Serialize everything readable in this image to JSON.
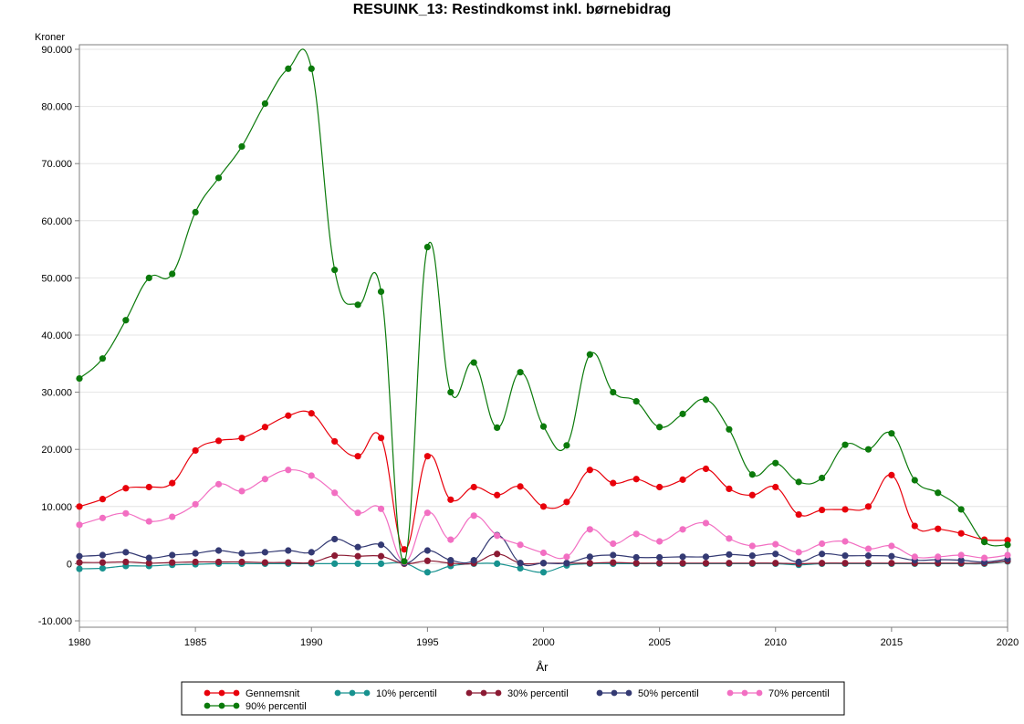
{
  "chart_data": {
    "type": "line",
    "title": "RESUINK_13: Restindkomst inkl. børnebidrag",
    "xlabel": "År",
    "ylabel": "Kroner",
    "xlim": [
      1980,
      2020
    ],
    "ylim": [
      -10000,
      90000
    ],
    "x_ticks": [
      1980,
      1985,
      1990,
      1995,
      2000,
      2005,
      2010,
      2015,
      2020
    ],
    "x_tick_labels": [
      "1980",
      "1985",
      "1990",
      "1995",
      "2000",
      "2005",
      "2010",
      "2015",
      "2020"
    ],
    "y_ticks": [
      -10000,
      0,
      10000,
      20000,
      30000,
      40000,
      50000,
      60000,
      70000,
      80000,
      90000
    ],
    "y_tick_labels": [
      "-10.000",
      "0",
      "10.000",
      "20.000",
      "30.000",
      "40.000",
      "50.000",
      "60.000",
      "70.000",
      "80.000",
      "90.000"
    ],
    "grid": "horizontal",
    "legend_position": "bottom",
    "x": [
      1980,
      1981,
      1982,
      1983,
      1984,
      1985,
      1986,
      1987,
      1988,
      1989,
      1990,
      1991,
      1992,
      1993,
      1994,
      1995,
      1996,
      1997,
      1998,
      1999,
      2000,
      2001,
      2002,
      2003,
      2004,
      2005,
      2006,
      2007,
      2008,
      2009,
      2010,
      2011,
      2012,
      2013,
      2014,
      2015,
      2016,
      2017,
      2018,
      2019,
      2020
    ],
    "series": [
      {
        "name": "Gennemsnit",
        "color": "#e8000b",
        "values": [
          10000,
          11300,
          13200,
          13400,
          14100,
          19800,
          21500,
          22000,
          23900,
          25900,
          26300,
          21400,
          18800,
          22000,
          2500,
          18800,
          11200,
          13400,
          12000,
          13500,
          10000,
          10800,
          16400,
          14100,
          14800,
          13400,
          14700,
          16600,
          13100,
          12000,
          13400,
          8600,
          9400,
          9500,
          10000,
          15500,
          6600,
          6100,
          5300,
          4200,
          4100
        ]
      },
      {
        "name": "10% percentil",
        "color": "#17928f",
        "values": [
          -900,
          -800,
          -400,
          -400,
          -200,
          -100,
          0,
          0,
          0,
          0,
          0,
          0,
          0,
          0,
          100,
          -1500,
          -400,
          0,
          0,
          -800,
          -1500,
          -300,
          0,
          0,
          0,
          0,
          0,
          0,
          0,
          0,
          0,
          -200,
          0,
          0,
          0,
          0,
          0,
          0,
          0,
          0,
          400
        ]
      },
      {
        "name": "30% percentil",
        "color": "#8b1a33",
        "values": [
          200,
          200,
          300,
          100,
          200,
          300,
          300,
          300,
          200,
          200,
          200,
          1400,
          1300,
          1300,
          0,
          500,
          100,
          100,
          1700,
          100,
          100,
          100,
          100,
          200,
          100,
          100,
          100,
          100,
          100,
          100,
          100,
          0,
          100,
          100,
          100,
          100,
          100,
          100,
          100,
          100,
          500
        ]
      },
      {
        "name": "50% percentil",
        "color": "#343a73",
        "values": [
          1300,
          1500,
          2000,
          1000,
          1500,
          1800,
          2300,
          1800,
          2000,
          2300,
          2000,
          4300,
          2900,
          3300,
          100,
          2300,
          600,
          600,
          5000,
          100,
          100,
          100,
          1200,
          1500,
          1100,
          1100,
          1200,
          1200,
          1600,
          1400,
          1700,
          300,
          1700,
          1400,
          1400,
          1300,
          600,
          700,
          600,
          300,
          800
        ]
      },
      {
        "name": "70% percentil",
        "color": "#f26fc2",
        "values": [
          6800,
          8000,
          8800,
          7400,
          8200,
          10400,
          13900,
          12700,
          14800,
          16400,
          15400,
          12400,
          8900,
          9600,
          300,
          8900,
          4200,
          8400,
          4900,
          3300,
          1900,
          1200,
          6000,
          3500,
          5200,
          3900,
          6000,
          7100,
          4400,
          3100,
          3400,
          2000,
          3500,
          3900,
          2600,
          3100,
          1200,
          1200,
          1500,
          1000,
          1500
        ]
      },
      {
        "name": "90% percentil",
        "color": "#0b7a0b",
        "values": [
          32400,
          35900,
          42600,
          50000,
          50700,
          61500,
          67500,
          73000,
          80500,
          86600,
          86600,
          51400,
          45300,
          47600,
          400,
          55400,
          30000,
          35200,
          23800,
          33500,
          24000,
          20700,
          36600,
          30000,
          28400,
          23900,
          26200,
          28700,
          23500,
          15600,
          17600,
          14300,
          15000,
          20800,
          20000,
          22800,
          14600,
          12400,
          9500,
          3800,
          3300
        ]
      }
    ]
  }
}
